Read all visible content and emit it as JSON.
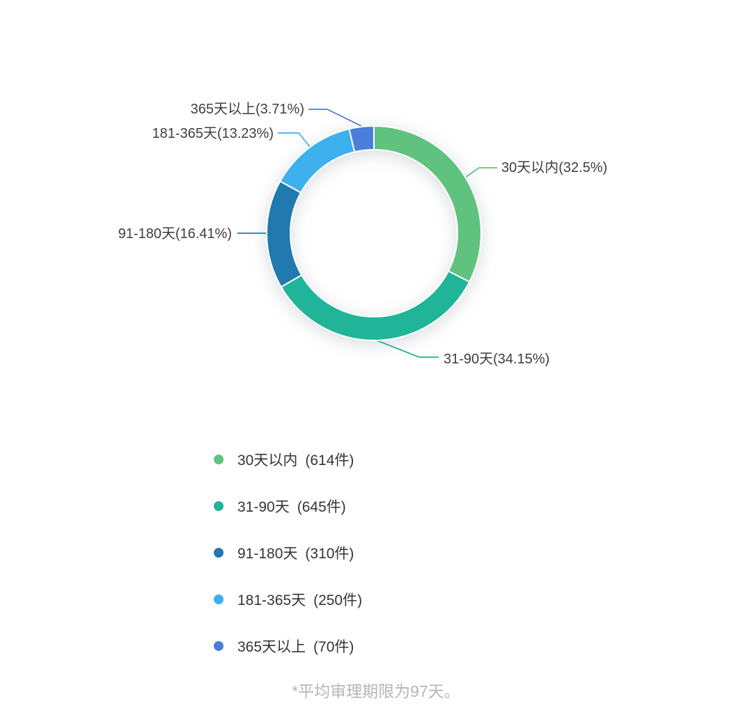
{
  "chart_data": {
    "type": "pie",
    "subtype": "donut",
    "title": "",
    "unit": "件",
    "legend_position": "bottom-left",
    "segments": [
      {
        "label": "30天以内",
        "value": 614,
        "percent": 32.5,
        "color": "#60c27f",
        "callout": "30天以内(32.5%)",
        "legend_count": "(614件)"
      },
      {
        "label": "31-90天",
        "value": 645,
        "percent": 34.15,
        "color": "#20b498",
        "callout": "31-90天(34.15%)",
        "legend_count": "(645件)"
      },
      {
        "label": "91-180天",
        "value": 310,
        "percent": 16.41,
        "color": "#2079af",
        "callout": "91-180天(16.41%)",
        "legend_count": "(310件)"
      },
      {
        "label": "181-365天",
        "value": 250,
        "percent": 13.23,
        "color": "#3db1ee",
        "callout": "181-365天(13.23%)",
        "legend_count": "(250件)"
      },
      {
        "label": "365天以上",
        "value": 70,
        "percent": 3.71,
        "color": "#4a7fd9",
        "callout": "365天以上(3.71%)",
        "legend_count": "(70件)"
      }
    ],
    "footnote": "*平均审理期限为97天。"
  }
}
